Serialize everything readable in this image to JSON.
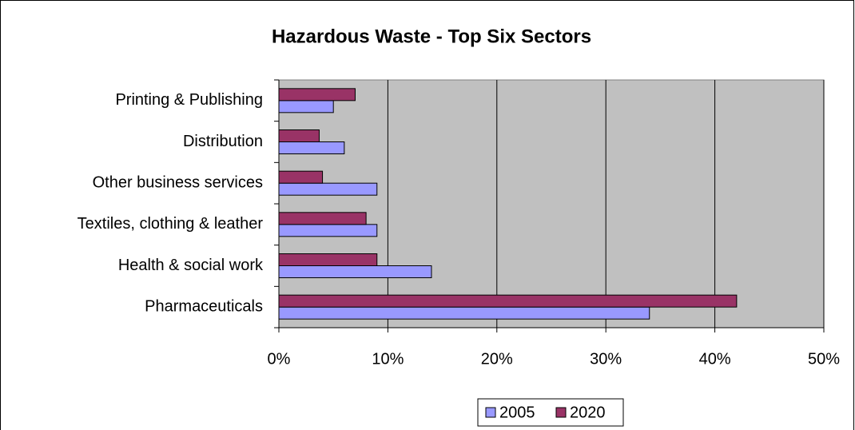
{
  "chart_data": {
    "type": "hbar",
    "title": "Hazardous Waste - Top Six Sectors",
    "categories": [
      "Pharmaceuticals",
      "Health & social work",
      "Textiles, clothing & leather",
      "Other business services",
      "Distribution",
      "Printing & Publishing"
    ],
    "series": [
      {
        "name": "2005",
        "color": "#9999ff",
        "values": [
          34,
          14,
          9,
          9,
          6,
          5
        ]
      },
      {
        "name": "2020",
        "color": "#993366",
        "values": [
          42,
          9,
          8,
          4,
          3.7,
          7
        ]
      }
    ],
    "xlim": [
      0,
      50
    ],
    "xticks": [
      {
        "value": 0,
        "label": "0%"
      },
      {
        "value": 10,
        "label": "10%"
      },
      {
        "value": 20,
        "label": "20%"
      },
      {
        "value": 30,
        "label": "30%"
      },
      {
        "value": 40,
        "label": "40%"
      },
      {
        "value": 50,
        "label": "50%"
      }
    ],
    "grid": true,
    "legend": "bottom",
    "plot_background": "#c0c0c0"
  }
}
